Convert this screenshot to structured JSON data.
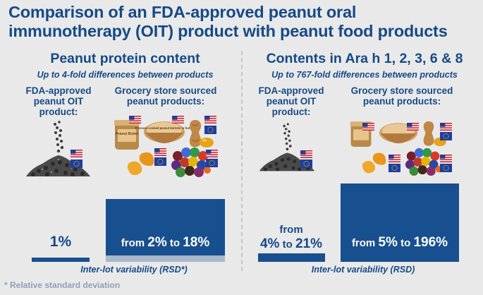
{
  "title": "Comparison of an FDA-approved peanut oral immunotherapy (OIT) product with peanut food products",
  "left_panel": {
    "heading": "Peanut protein content",
    "subheading": "Up to 4-fold differences between products",
    "oit_label": "FDA-approved peanut OIT product:",
    "grocery_label": "Grocery store sourced peanut products:",
    "oit_value": "1%",
    "grocery_value_prefix": "from",
    "grocery_value_low": "2%",
    "grocery_value_mid": "to",
    "grocery_value_high": "18%",
    "footer": "Inter-lot variability (RSD*)"
  },
  "right_panel": {
    "heading": "Contents in Ara h 1, 2, 3, 6 & 8",
    "subheading": "Up to 767-fold differences between products",
    "oit_label": "FDA-approved peanut OIT product:",
    "grocery_label": "Grocery store sourced peanut products:",
    "oit_value_prefix": "from",
    "oit_value_low": "4%",
    "oit_value_mid": "to",
    "oit_value_high": "21%",
    "grocery_value_prefix": "from",
    "grocery_value_low": "5%",
    "grocery_value_mid": "to",
    "grocery_value_high": "196%",
    "footer": "Inter-lot variability (RSD)"
  },
  "footnote": "* Relative standard deviation",
  "jar_label": "Peanut Butter",
  "bowl_label": "Pressure-cooked peanut kernels or butter",
  "colors": {
    "primary": "#184f8f",
    "secondary": "#a9b8cc",
    "background": "#e9e9ea",
    "divider": "#c3c7cd"
  },
  "icons": [
    "powder-pile-icon",
    "us-flag-icon",
    "eu-flag-icon",
    "peanut-butter-jar-icon",
    "peanut-bowl-icon",
    "peanut-icon",
    "peanut-puffs-icon",
    "candy-pile-icon"
  ]
}
